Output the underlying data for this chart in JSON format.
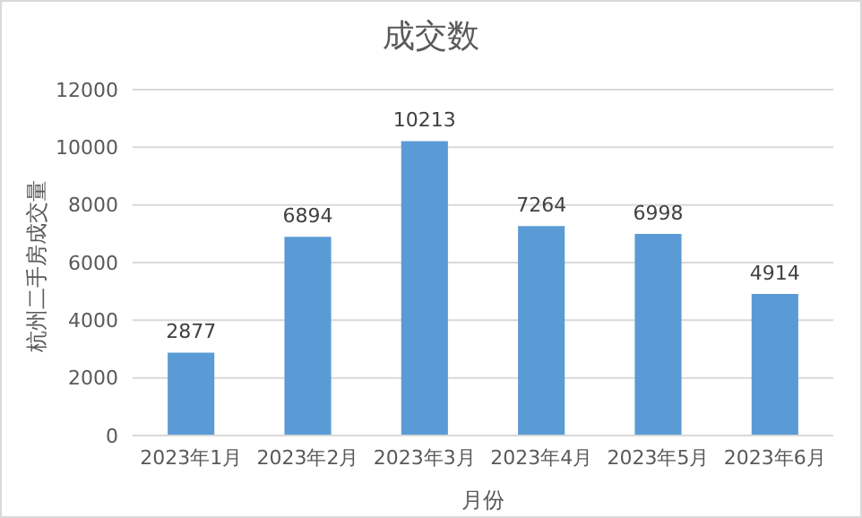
{
  "chart_data": {
    "type": "bar",
    "title": "成交数",
    "xlabel": "月份",
    "ylabel": "杭州二手房成交量",
    "categories": [
      "2023年1月",
      "2023年2月",
      "2023年3月",
      "2023年4月",
      "2023年5月",
      "2023年6月"
    ],
    "values": [
      2877,
      6894,
      10213,
      7264,
      6998,
      4914
    ],
    "color": "#5b9bd5",
    "ylim": [
      0,
      12000
    ],
    "yticks": [
      0,
      2000,
      4000,
      6000,
      8000,
      10000,
      12000
    ],
    "grid": "y",
    "data_labels": true,
    "legend": false
  }
}
